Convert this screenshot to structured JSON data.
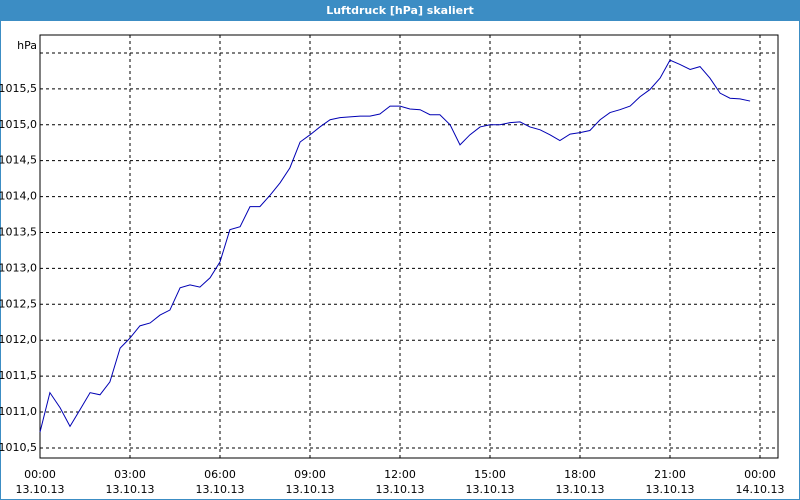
{
  "chart_data": {
    "type": "line",
    "title": "Luftdruck [hPa] skaliert",
    "y_label": "hPa",
    "x": [
      0,
      0.33,
      0.67,
      1,
      1.33,
      1.67,
      2,
      2.33,
      2.67,
      3,
      3.33,
      3.67,
      4,
      4.33,
      4.67,
      5,
      5.33,
      5.67,
      6,
      6.33,
      6.67,
      7,
      7.33,
      7.67,
      8,
      8.33,
      8.67,
      9,
      9.33,
      9.67,
      10,
      10.33,
      10.67,
      11,
      11.33,
      11.67,
      12,
      12.33,
      12.67,
      13,
      13.33,
      13.67,
      14,
      14.33,
      14.67,
      15,
      15.33,
      15.67,
      16,
      16.33,
      16.67,
      17,
      17.33,
      17.67,
      18,
      18.33,
      18.67,
      19,
      19.33,
      19.67,
      20,
      20.33,
      20.67,
      21,
      21.33,
      21.67,
      22,
      22.33,
      22.67,
      23,
      23.33,
      23.67
    ],
    "series": [
      {
        "name": "Luftdruck",
        "color": "#0000b4",
        "values": [
          1010.72,
          1011.27,
          1011.06,
          1010.8,
          1011.03,
          1011.27,
          1011.24,
          1011.42,
          1011.89,
          1012.03,
          1012.2,
          1012.24,
          1012.35,
          1012.42,
          1012.73,
          1012.77,
          1012.74,
          1012.87,
          1013.09,
          1013.54,
          1013.58,
          1013.86,
          1013.86,
          1014.02,
          1014.19,
          1014.4,
          1014.76,
          1014.86,
          1014.97,
          1015.07,
          1015.1,
          1015.11,
          1015.12,
          1015.12,
          1015.15,
          1015.26,
          1015.26,
          1015.22,
          1015.21,
          1015.14,
          1015.14,
          1015.0,
          1014.72,
          1014.86,
          1014.97,
          1015.0,
          1015.0,
          1015.03,
          1015.04,
          1014.97,
          1014.93,
          1014.86,
          1014.78,
          1014.87,
          1014.89,
          1014.92,
          1015.07,
          1015.17,
          1015.21,
          1015.26,
          1015.39,
          1015.49,
          1015.65,
          1015.9,
          1015.84,
          1015.77,
          1015.81,
          1015.65,
          1015.44,
          1015.37,
          1015.36,
          1015.33
        ]
      }
    ],
    "xlim": [
      0,
      24.6
    ],
    "xticks": [
      {
        "value": 0,
        "label": "00:00",
        "date": "13.10.13"
      },
      {
        "value": 3,
        "label": "03:00",
        "date": "13.10.13"
      },
      {
        "value": 6,
        "label": "06:00",
        "date": "13.10.13"
      },
      {
        "value": 9,
        "label": "09:00",
        "date": "13.10.13"
      },
      {
        "value": 12,
        "label": "12:00",
        "date": "13.10.13"
      },
      {
        "value": 15,
        "label": "15:00",
        "date": "13.10.13"
      },
      {
        "value": 18,
        "label": "18:00",
        "date": "13.10.13"
      },
      {
        "value": 21,
        "label": "21:00",
        "date": "13.10.13"
      },
      {
        "value": 24,
        "label": "00:00",
        "date": "14.10.13"
      }
    ],
    "ylim": [
      1010.36,
      1016.25
    ],
    "yticks": [
      {
        "value": 1010.5,
        "label": "1010,5"
      },
      {
        "value": 1011,
        "label": "1011,0"
      },
      {
        "value": 1011.5,
        "label": "1011,5"
      },
      {
        "value": 1012,
        "label": "1012,0"
      },
      {
        "value": 1012.5,
        "label": "1012,5"
      },
      {
        "value": 1013,
        "label": "1013,0"
      },
      {
        "value": 1013.5,
        "label": "1013,5"
      },
      {
        "value": 1014,
        "label": "1014,0"
      },
      {
        "value": 1014.5,
        "label": "1014,5"
      },
      {
        "value": 1015,
        "label": "1015,0"
      },
      {
        "value": 1015.5,
        "label": "1015,5"
      },
      {
        "value": 1016,
        "label": null
      }
    ],
    "grid": true
  }
}
